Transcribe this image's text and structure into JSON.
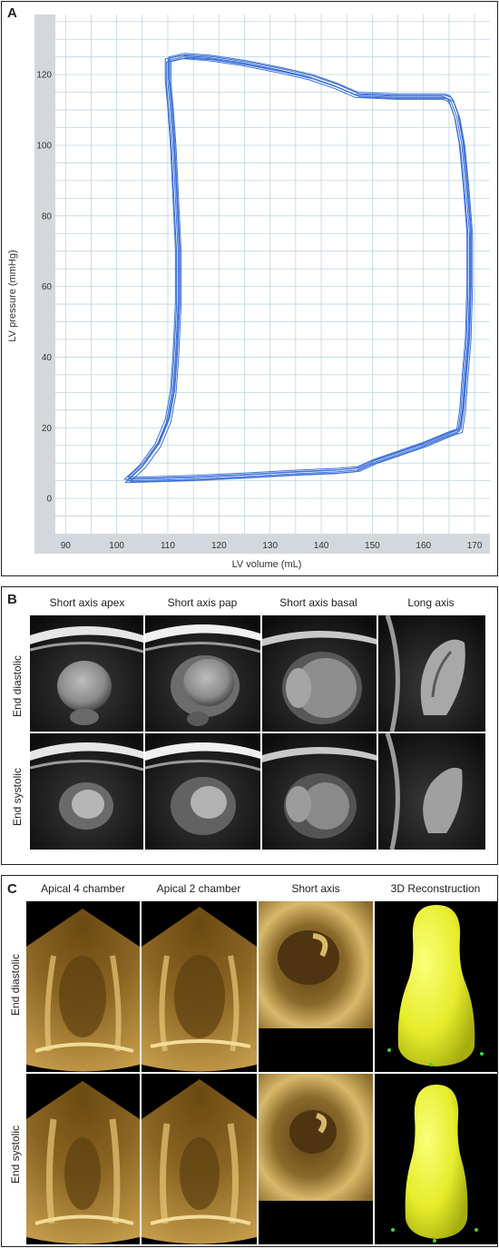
{
  "panel_a": {
    "letter": "A",
    "chart_data": {
      "type": "line",
      "xlabel": "LV volume (mL)",
      "ylabel": "LV pressure (mmHg)",
      "xlim": [
        88,
        173
      ],
      "ylim": [
        -10,
        137
      ],
      "xticks": [
        90,
        100,
        110,
        120,
        130,
        140,
        150,
        160,
        170
      ],
      "yticks": [
        0,
        20,
        40,
        60,
        80,
        100,
        120
      ],
      "grid": true,
      "series": [
        {
          "color": "#3b6fd8",
          "x": [
            102,
            105,
            108,
            110,
            111,
            111.5,
            112,
            112,
            111.5,
            111,
            110.5,
            110,
            110,
            113,
            118,
            125,
            132,
            138,
            143,
            147,
            155,
            160,
            164,
            165,
            165.5,
            166.5,
            167.5,
            168.3,
            169,
            169,
            168.7,
            168,
            167.6,
            167,
            165,
            160,
            150,
            147,
            143,
            135,
            125,
            115,
            108,
            103,
            102
          ],
          "y": [
            5,
            9,
            15,
            22,
            30,
            40,
            55,
            70,
            85,
            100,
            110,
            118,
            124,
            125,
            124.5,
            123,
            121,
            119,
            116.5,
            114,
            113.5,
            113.5,
            113.5,
            113,
            112,
            108,
            100,
            88,
            75,
            60,
            45,
            33,
            25,
            19,
            18,
            15,
            10,
            8,
            7.5,
            7,
            6.2,
            5.5,
            5.2,
            5,
            5
          ]
        }
      ]
    }
  },
  "panel_b": {
    "letter": "B",
    "columns": [
      "Short axis apex",
      "Short axis pap",
      "Short axis basal",
      "Long axis"
    ],
    "rows": [
      "End diastolic",
      "End systolic"
    ]
  },
  "panel_c": {
    "letter": "C",
    "columns": [
      "Apical 4 chamber",
      "Apical 2 chamber",
      "Short axis",
      "3D Reconstruction"
    ],
    "rows": [
      "End diastolic",
      "End systolic"
    ]
  },
  "colors": {
    "loop": "#3b6fd8",
    "plot_bg": "#ffffff",
    "axis_band": "#d3d8dc",
    "grid": "#b9d6e4",
    "reconstruction": "#e6ec2a"
  }
}
